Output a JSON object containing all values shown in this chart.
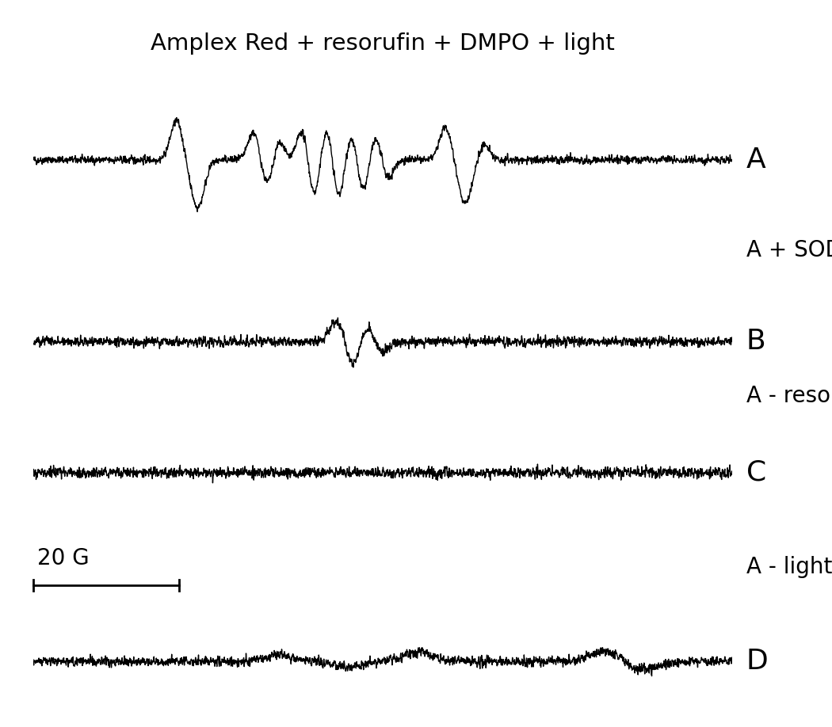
{
  "title": "Amplex Red + resorufin + DMPO + light",
  "title_fontsize": 21,
  "label_fontsize": 26,
  "sublabel_fontsize": 20,
  "labels": [
    "A",
    "B",
    "C",
    "D"
  ],
  "sublabels": [
    "A + SOD",
    "A - resorufin",
    "A - light"
  ],
  "scale_bar_text": "20 G",
  "background_color": "#ffffff",
  "line_color": "#000000",
  "n_points": 3000,
  "seed": 42,
  "linewidth": 1.0
}
